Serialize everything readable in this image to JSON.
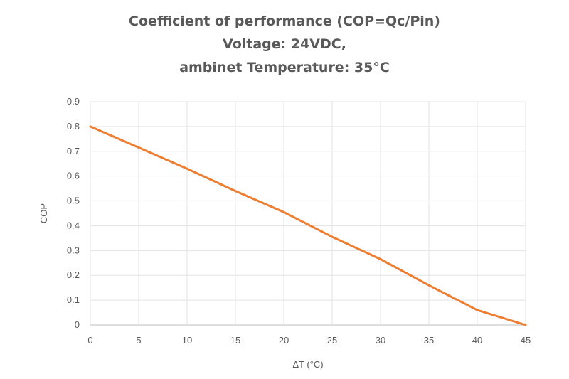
{
  "chart_data": {
    "type": "line",
    "title_lines": [
      "Coefficient of performance (COP=Qc/Pin)",
      "Voltage: 24VDC,",
      "ambinet Temperature: 35°C"
    ],
    "xlabel": "ΔT (°C)",
    "ylabel": "COP",
    "xlim": [
      0,
      45
    ],
    "ylim": [
      0,
      0.9
    ],
    "x_ticks": [
      0,
      5,
      10,
      15,
      20,
      25,
      30,
      35,
      40,
      45
    ],
    "y_ticks": [
      0,
      0.1,
      0.2,
      0.3,
      0.4,
      0.5,
      0.6,
      0.7,
      0.8,
      0.9
    ],
    "grid": true,
    "legend": "none",
    "series": [
      {
        "color": "#ED7D31",
        "x": [
          0,
          5,
          10,
          15,
          20,
          25,
          30,
          35,
          40,
          45
        ],
        "y": [
          0.8,
          0.715,
          0.63,
          0.54,
          0.455,
          0.355,
          0.265,
          0.16,
          0.06,
          0.0
        ]
      }
    ]
  }
}
